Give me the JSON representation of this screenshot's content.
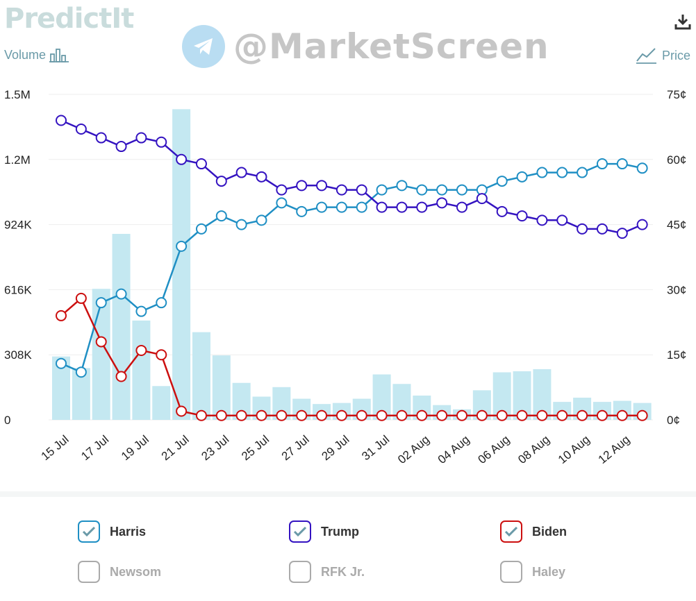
{
  "brand": {
    "logo_text": "PredictIt"
  },
  "watermark": {
    "text": "@MarketScreen"
  },
  "toggles": {
    "volume_label": "Volume",
    "price_label": "Price"
  },
  "chart_data": {
    "type": "line",
    "title": "",
    "secondary_type": "bar",
    "categories": [
      "15 Jul",
      "16 Jul",
      "17 Jul",
      "18 Jul",
      "19 Jul",
      "20 Jul",
      "21 Jul",
      "22 Jul",
      "23 Jul",
      "24 Jul",
      "25 Jul",
      "26 Jul",
      "27 Jul",
      "28 Jul",
      "29 Jul",
      "30 Jul",
      "31 Jul",
      "01 Aug",
      "02 Aug",
      "03 Aug",
      "04 Aug",
      "05 Aug",
      "06 Aug",
      "07 Aug",
      "08 Aug",
      "09 Aug",
      "10 Aug",
      "11 Aug",
      "12 Aug",
      "13 Aug"
    ],
    "x_tick_labels": [
      "15 Jul",
      "17 Jul",
      "19 Jul",
      "21 Jul",
      "23 Jul",
      "25 Jul",
      "27 Jul",
      "29 Jul",
      "31 Jul",
      "02 Aug",
      "04 Aug",
      "06 Aug",
      "08 Aug",
      "10 Aug",
      "12 Aug"
    ],
    "volume": {
      "name": "Volume",
      "color": "#c4e8f1",
      "values": [
        300000,
        245000,
        620000,
        880000,
        470000,
        160000,
        1470000,
        415000,
        305000,
        175000,
        110000,
        155000,
        100000,
        75000,
        80000,
        100000,
        215000,
        170000,
        115000,
        70000,
        50000,
        140000,
        225000,
        230000,
        240000,
        85000,
        105000,
        85000,
        90000,
        80000
      ]
    },
    "series": [
      {
        "name": "Harris",
        "color": "#1f8fc4",
        "values": [
          13,
          11,
          27,
          29,
          25,
          27,
          40,
          44,
          47,
          45,
          46,
          50,
          48,
          49,
          49,
          49,
          53,
          54,
          53,
          53,
          53,
          53,
          55,
          56,
          57,
          57,
          57,
          59,
          59,
          58
        ]
      },
      {
        "name": "Trump",
        "color": "#3413c1",
        "values": [
          69,
          67,
          65,
          63,
          65,
          64,
          60,
          59,
          55,
          57,
          56,
          53,
          54,
          54,
          53,
          53,
          49,
          49,
          49,
          50,
          49,
          51,
          48,
          47,
          46,
          46,
          44,
          44,
          43,
          45
        ]
      },
      {
        "name": "Biden",
        "color": "#cc0f0f",
        "values": [
          24,
          28,
          18,
          10,
          16,
          15,
          2,
          1,
          1,
          1,
          1,
          1,
          1,
          1,
          1,
          1,
          1,
          1,
          1,
          1,
          1,
          1,
          1,
          1,
          1,
          1,
          1,
          1,
          1,
          1
        ]
      }
    ],
    "y_left": {
      "label": "Volume",
      "ticks": [
        "0",
        "308K",
        "616K",
        "924K",
        "1.2M",
        "1.5M"
      ],
      "range": [
        0,
        1540000
      ]
    },
    "y_right": {
      "label": "Price",
      "ticks": [
        "0¢",
        "15¢",
        "30¢",
        "45¢",
        "60¢",
        "75¢"
      ],
      "range": [
        0,
        75
      ]
    }
  },
  "legend": [
    {
      "name": "Harris",
      "checked": true,
      "color": "#1f8fc4"
    },
    {
      "name": "Trump",
      "checked": true,
      "color": "#3413c1"
    },
    {
      "name": "Biden",
      "checked": true,
      "color": "#cc0f0f"
    },
    {
      "name": "Newsom",
      "checked": false,
      "color": "#aaaaaa"
    },
    {
      "name": "RFK Jr.",
      "checked": false,
      "color": "#aaaaaa"
    },
    {
      "name": "Haley",
      "checked": false,
      "color": "#aaaaaa"
    }
  ],
  "colors": {
    "grid": "#eeeeee",
    "muted_text": "#aaaaaa",
    "accent": "#6a9aa8"
  }
}
